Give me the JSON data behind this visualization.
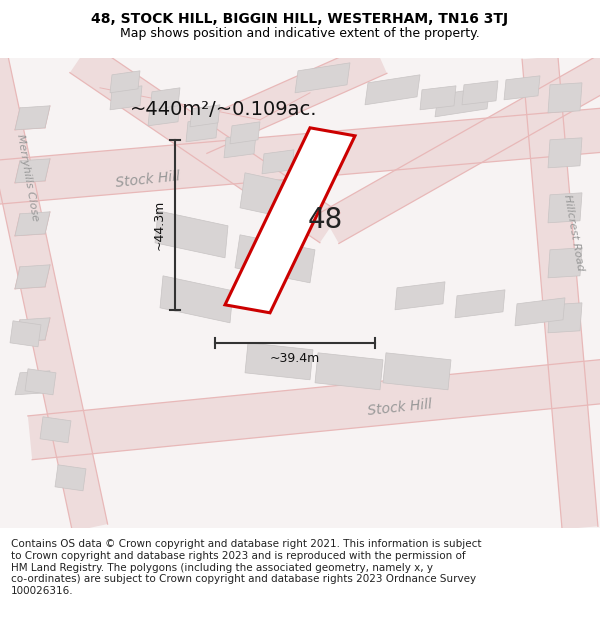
{
  "title_line1": "48, STOCK HILL, BIGGIN HILL, WESTERHAM, TN16 3TJ",
  "title_line2": "Map shows position and indicative extent of the property.",
  "footer_text": "Contains OS data © Crown copyright and database right 2021. This information is subject to Crown copyright and database rights 2023 and is reproduced with the permission of HM Land Registry. The polygons (including the associated geometry, namely x, y co-ordinates) are subject to Crown copyright and database rights 2023 Ordnance Survey 100026316.",
  "area_label": "~440m²/~0.109ac.",
  "width_label": "~39.4m",
  "height_label": "~44.3m",
  "plot_number": "48",
  "map_bg": "#f7f3f3",
  "road_fill": "#eedcdc",
  "road_line": "#e8b8b8",
  "building_fill": "#d8d4d4",
  "building_edge": "#c8c4c4",
  "plot_fill": "#ffffff",
  "plot_edge": "#cc0000",
  "plot_edge_width": 2.2,
  "dim_color": "#333333",
  "label_color": "#999999",
  "title_fs": 10,
  "subtitle_fs": 9,
  "footer_fs": 7.5,
  "area_fs": 14,
  "plot_num_fs": 20,
  "road_fs": 10,
  "road_fs_sm": 8
}
